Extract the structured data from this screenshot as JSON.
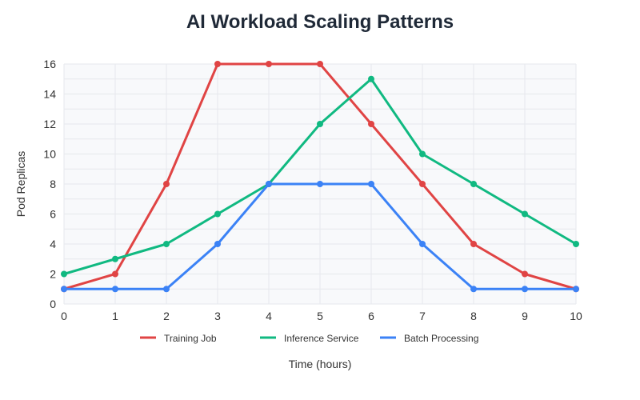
{
  "chart_data": {
    "type": "line",
    "title": "AI Workload Scaling Patterns",
    "xlabel": "Time (hours)",
    "ylabel": "Pod Replicas",
    "x": [
      0,
      1,
      2,
      3,
      4,
      5,
      6,
      7,
      8,
      9,
      10
    ],
    "xlim": [
      0,
      10
    ],
    "ylim": [
      0,
      16
    ],
    "yticks": [
      0,
      2,
      4,
      6,
      8,
      10,
      12,
      14,
      16
    ],
    "grid": true,
    "legend_position": "bottom",
    "series": [
      {
        "name": "Training Job",
        "color": "#e04444",
        "values": [
          1,
          2,
          8,
          16,
          16,
          16,
          12,
          8,
          4,
          2,
          1
        ]
      },
      {
        "name": "Inference Service",
        "color": "#10b981",
        "values": [
          2,
          3,
          4,
          6,
          8,
          12,
          15,
          10,
          8,
          6,
          4
        ]
      },
      {
        "name": "Batch Processing",
        "color": "#3b82f6",
        "values": [
          1,
          1,
          1,
          4,
          8,
          8,
          8,
          4,
          1,
          1,
          1
        ]
      }
    ]
  }
}
